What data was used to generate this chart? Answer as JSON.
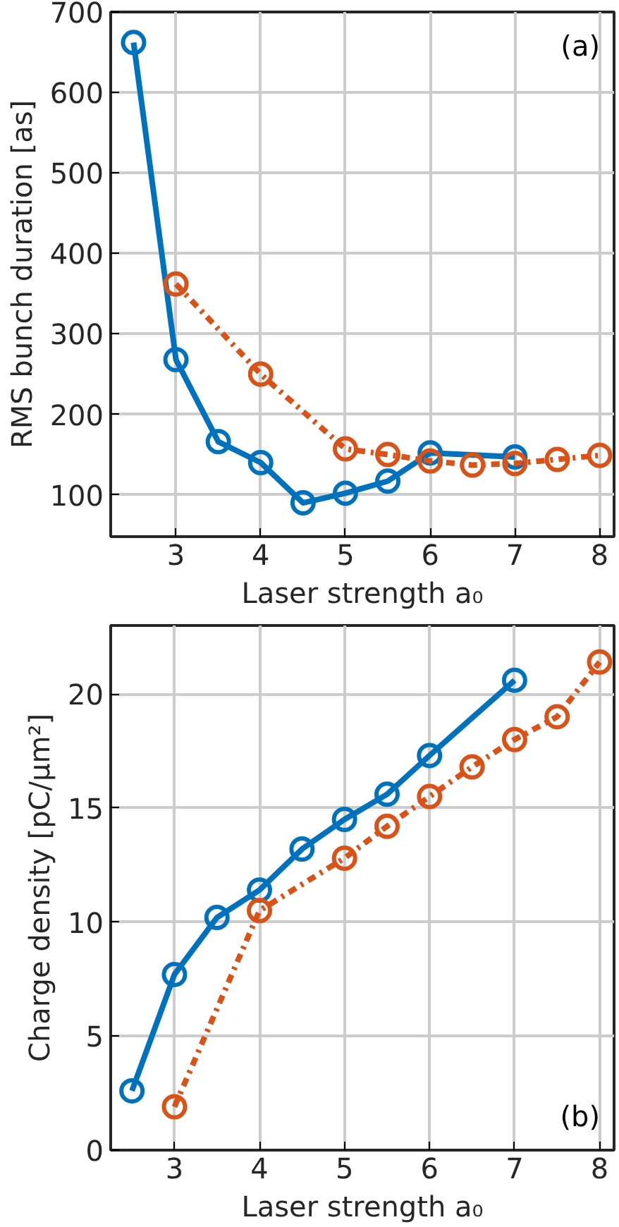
{
  "chart_data": [
    {
      "type": "line",
      "xlabel": "Laser strength a₀",
      "ylabel": "RMS bunch duration [as]",
      "annotations": [
        "(a)"
      ],
      "xlim": [
        2.23,
        8.17
      ],
      "ylim": [
        48,
        700
      ],
      "xticks": [
        3,
        4,
        5,
        6,
        7,
        8
      ],
      "yticks": [
        100,
        200,
        300,
        400,
        500,
        600,
        700
      ],
      "grid": true,
      "marker": "circle",
      "series": [
        {
          "color": "#0072bd",
          "line_style": "solid",
          "x": [
            2.5,
            3,
            3.5,
            4,
            4.5,
            5,
            5.5,
            6,
            7
          ],
          "values": [
            662,
            268,
            166,
            140,
            90,
            102,
            117,
            152,
            147
          ]
        },
        {
          "color": "#d95319",
          "line_style": "dashed",
          "x": [
            3,
            4,
            5,
            5.5,
            6,
            6.5,
            7,
            7.5,
            8
          ],
          "values": [
            362,
            250,
            157,
            150,
            142,
            137,
            139,
            144,
            149
          ]
        }
      ]
    },
    {
      "type": "line",
      "xlabel": "Laser strength a₀",
      "ylabel": "Charge density [pC/μm²]",
      "annotations": [
        "(b)"
      ],
      "xlim": [
        2.25,
        8.17
      ],
      "ylim": [
        0,
        23
      ],
      "xticks": [
        3,
        4,
        5,
        6,
        7,
        8
      ],
      "yticks": [
        0,
        5,
        10,
        15,
        20
      ],
      "grid": true,
      "marker": "circle",
      "series": [
        {
          "color": "#0072bd",
          "line_style": "solid",
          "x": [
            2.5,
            3,
            3.5,
            4,
            4.5,
            5,
            5.5,
            6,
            7
          ],
          "values": [
            2.6,
            7.7,
            10.2,
            11.4,
            13.2,
            14.5,
            15.6,
            17.3,
            20.6
          ]
        },
        {
          "color": "#d95319",
          "line_style": "dashed",
          "x": [
            3,
            4,
            5,
            5.5,
            6,
            6.5,
            7,
            7.5,
            8
          ],
          "values": [
            1.9,
            10.5,
            12.8,
            14.2,
            15.5,
            16.8,
            18,
            19,
            21.4
          ]
        }
      ]
    }
  ]
}
